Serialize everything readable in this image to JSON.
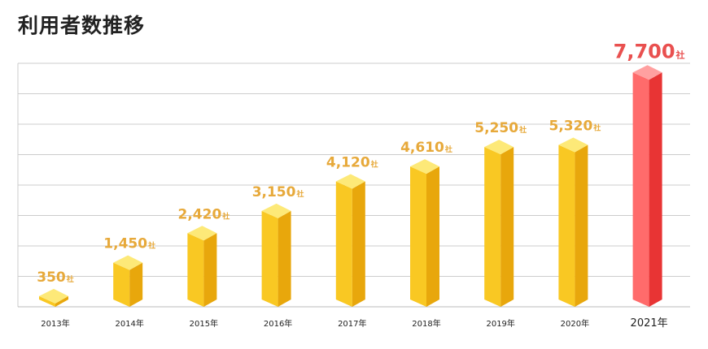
{
  "page": {
    "title": "利用者数推移"
  },
  "chart_data": {
    "type": "bar",
    "title": "利用者数推移",
    "xlabel": "",
    "ylabel": "",
    "unit": "社",
    "categories": [
      "2013年",
      "2014年",
      "2015年",
      "2016年",
      "2017年",
      "2018年",
      "2019年",
      "2020年",
      "2021年"
    ],
    "values": [
      350,
      1450,
      2420,
      3150,
      4120,
      4610,
      5250,
      5320,
      7700
    ],
    "value_labels": [
      "350",
      "1,450",
      "2,420",
      "3,150",
      "4,120",
      "4,610",
      "5,250",
      "5,320",
      "7,700"
    ],
    "ylim": [
      0,
      8000
    ],
    "grid": true,
    "highlight_index": 8,
    "colors": {
      "bar_front": "#f9c823",
      "bar_side": "#e8a70c",
      "bar_top": "#fde978",
      "label": "#e7a93a",
      "highlight_front": "#ff6b6b",
      "highlight_side": "#e83434",
      "highlight_top": "#ffa0a0",
      "highlight_label": "#e9504f",
      "grid": "#cccccc"
    }
  }
}
